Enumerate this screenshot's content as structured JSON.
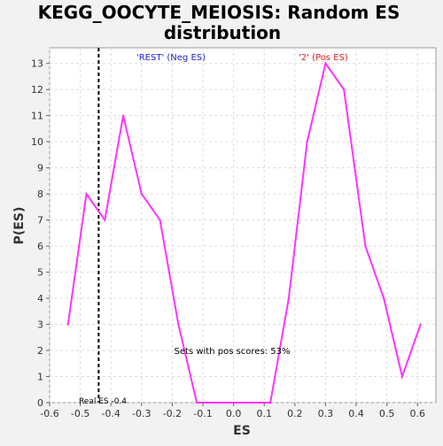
{
  "chart_data": {
    "type": "line",
    "title": "KEGG_OOCYTE_MEIOSIS: Random ES distribution",
    "title_lines": [
      "KEGG_OOCYTE_MEIOSIS: Random ES",
      "distribution"
    ],
    "xlabel": "ES",
    "ylabel": "P(ES)",
    "xlim": [
      -0.6,
      0.66
    ],
    "ylim": [
      0,
      13.6
    ],
    "xticks": [
      "-0.6",
      "-0.5",
      "-0.4",
      "-0.3",
      "-0.2",
      "-0.1",
      "0.0",
      "0.1",
      "0.2",
      "0.3",
      "0.4",
      "0.5",
      "0.6"
    ],
    "yticks": [
      "0",
      "1",
      "2",
      "3",
      "4",
      "5",
      "6",
      "7",
      "8",
      "9",
      "10",
      "11",
      "12",
      "13"
    ],
    "grid": true,
    "series": [
      {
        "color": "#ff33ff",
        "x": [
          -0.54,
          -0.48,
          -0.42,
          -0.36,
          -0.3,
          -0.24,
          -0.18,
          -0.12,
          -0.06,
          0.0,
          0.06,
          0.12,
          0.18,
          0.24,
          0.3,
          0.36,
          0.43,
          0.49,
          0.55,
          0.61
        ],
        "y": [
          3,
          8,
          7,
          11,
          8,
          7,
          3,
          0,
          0,
          0,
          0,
          0,
          4,
          10,
          13,
          12,
          6,
          4,
          1,
          3
        ]
      }
    ],
    "real_es": -0.44,
    "annotations": {
      "neg_label": "'REST' (Neg ES)",
      "pos_label": "'2' (Pos ES)",
      "pos_scores": "Sets with pos scores: 53%",
      "real_es_label": "Real ES -0.4"
    },
    "colors": {
      "neg_label": "#2222cc",
      "pos_label": "#dd2222",
      "marker_line": "#000000",
      "plot_bg": "#ffffff",
      "grid": "#dddddd"
    }
  }
}
